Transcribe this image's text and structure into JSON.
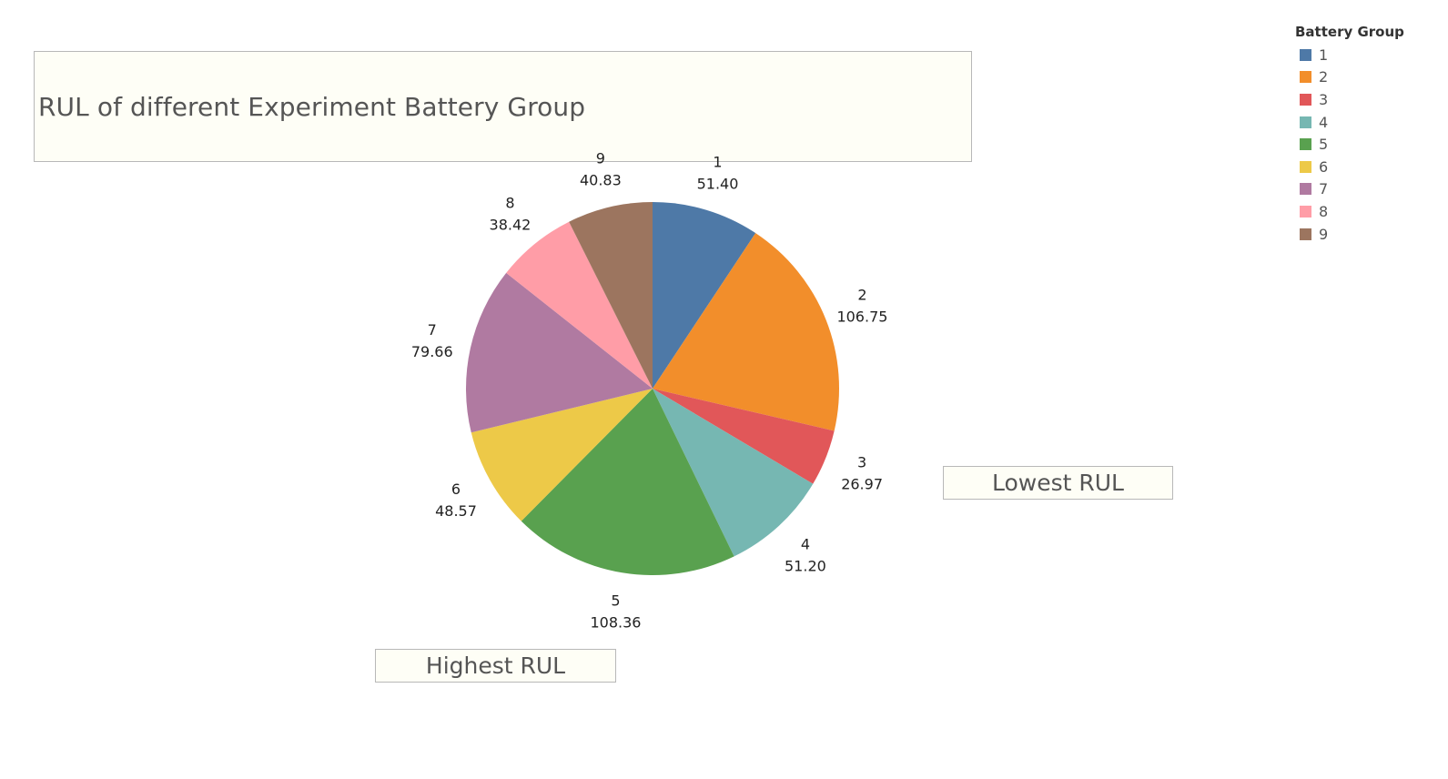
{
  "chart_data": {
    "type": "pie",
    "title": "RUL of different Experiment Battery Group",
    "legend": {
      "title": "Battery Group",
      "placement": "top-right"
    },
    "slices": [
      {
        "label": "1",
        "value": 51.4,
        "value_text": "51.40",
        "color": "#4e79a7"
      },
      {
        "label": "2",
        "value": 106.75,
        "value_text": "106.75",
        "color": "#f28e2b"
      },
      {
        "label": "3",
        "value": 26.97,
        "value_text": "26.97",
        "color": "#e15759"
      },
      {
        "label": "4",
        "value": 51.2,
        "value_text": "51.20",
        "color": "#76b7b2"
      },
      {
        "label": "5",
        "value": 108.36,
        "value_text": "108.36",
        "color": "#59a14f"
      },
      {
        "label": "6",
        "value": 48.57,
        "value_text": "48.57",
        "color": "#edc948"
      },
      {
        "label": "7",
        "value": 79.66,
        "value_text": "79.66",
        "color": "#b07aa1"
      },
      {
        "label": "8",
        "value": 38.42,
        "value_text": "38.42",
        "color": "#ff9da7"
      },
      {
        "label": "9",
        "value": 40.83,
        "value_text": "40.83",
        "color": "#9c755f"
      }
    ],
    "annotations": {
      "lowest": "Lowest RUL",
      "highest": "Highest RUL"
    }
  }
}
